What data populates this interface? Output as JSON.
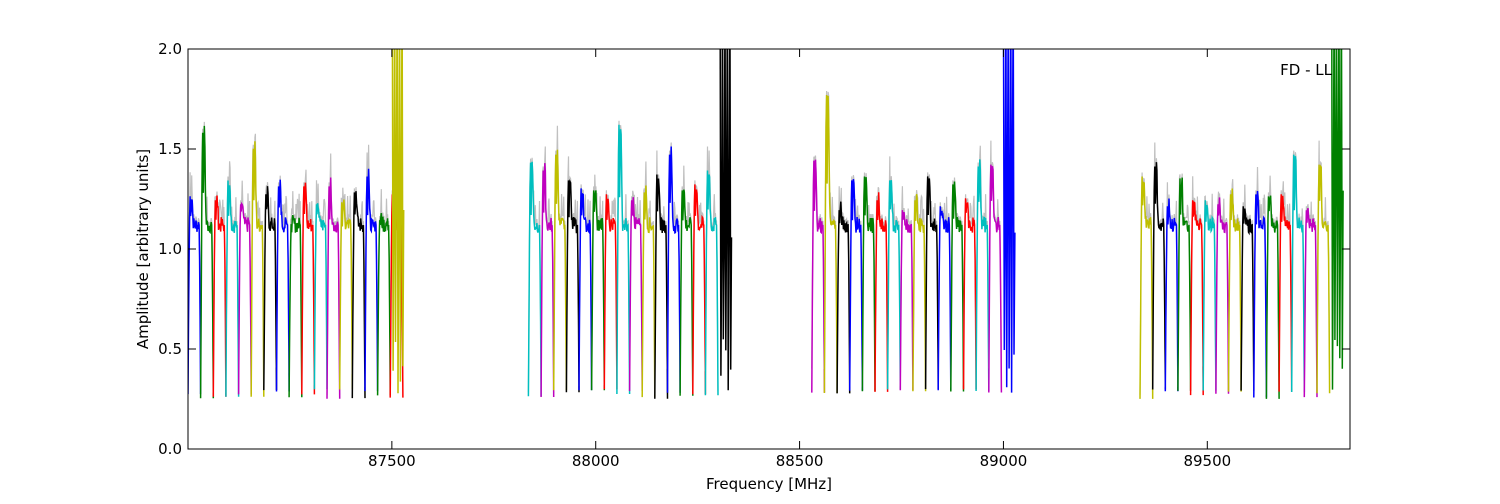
{
  "chart_data": {
    "type": "line",
    "title": "",
    "annotation": "FD - LL",
    "xlabel": "Frequency [MHz]",
    "ylabel": "Amplitude [arbitrary units]",
    "xlim": [
      87000,
      89850
    ],
    "ylim": [
      0.0,
      2.0
    ],
    "x_ticks": [
      87500,
      88000,
      88500,
      89000,
      89500
    ],
    "x_tick_labels": [
      "87500",
      "88000",
      "88500",
      "89000",
      "89500"
    ],
    "y_ticks": [
      0.0,
      0.5,
      1.0,
      1.5,
      2.0
    ],
    "y_tick_labels": [
      "0.0",
      "0.5",
      "1.0",
      "1.5",
      "2.0"
    ],
    "grid": false,
    "legend": "none",
    "color_cycle": [
      "#0000ff",
      "#008000",
      "#ff0000",
      "#00bfbf",
      "#bf00bf",
      "#bfbf00",
      "#000000"
    ],
    "background_trace_color": "#c0c0c0",
    "groups": [
      {
        "start": 87000,
        "channel_width": 31,
        "peaks": [
          1.27,
          1.59,
          1.25,
          1.35,
          1.23,
          1.51,
          1.28,
          1.32,
          1.13,
          1.32,
          1.23,
          1.32,
          1.24,
          1.29,
          1.37,
          1.15,
          1.28
        ],
        "spike_channels": [
          16
        ]
      },
      {
        "start": 87835,
        "channel_width": 31,
        "peaks": [
          1.44,
          1.4,
          1.48,
          1.35,
          1.31,
          1.3,
          1.28,
          1.63,
          1.25,
          1.29,
          1.38,
          1.48,
          1.3,
          1.33,
          1.4
        ],
        "spike_channels": [
          15
        ]
      },
      {
        "start": 88530,
        "channel_width": 31,
        "peaks": [
          1.45,
          1.78,
          1.2,
          1.35,
          1.37,
          1.25,
          1.35,
          1.2,
          1.25,
          1.37,
          1.22,
          1.33,
          1.26,
          1.42,
          1.43
        ],
        "spike_channels": [
          15
        ]
      },
      {
        "start": 89335,
        "channel_width": 31,
        "peaks": [
          1.37,
          1.42,
          1.22,
          1.36,
          1.25,
          1.25,
          1.23,
          1.28,
          1.22,
          1.28,
          1.27,
          1.28,
          1.48,
          1.2,
          1.43
        ],
        "spike_channels": [
          15
        ]
      }
    ]
  }
}
